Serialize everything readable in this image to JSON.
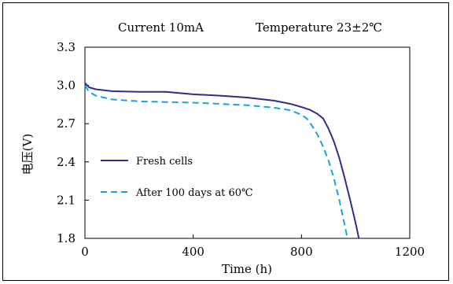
{
  "chart_data": {
    "type": "line",
    "title": "Current 10mA",
    "subtitle": "Temperature 23±2℃",
    "xlabel": "Time (h)",
    "ylabel": "电压(V)",
    "xlim": [
      0,
      1200
    ],
    "ylim": [
      1.8,
      3.3
    ],
    "x_ticks": [
      0,
      400,
      800,
      1200
    ],
    "y_ticks": [
      1.8,
      2.1,
      2.4,
      2.7,
      3.0,
      3.3
    ],
    "x_tick_labels": [
      "0",
      "400",
      "800",
      "1200"
    ],
    "y_tick_labels": [
      "1.8",
      "2.1",
      "2.4",
      "2.7",
      "3.0",
      "3.3"
    ],
    "grid": false,
    "legend_position": "left",
    "series": [
      {
        "name": "Fresh cells",
        "style": "solid",
        "color": "#2e2e8a",
        "x": [
          0,
          15,
          40,
          100,
          200,
          300,
          400,
          500,
          600,
          700,
          760,
          800,
          830,
          860,
          880,
          900,
          920,
          940,
          960,
          980,
          1000,
          1012
        ],
        "y": [
          3.02,
          2.985,
          2.97,
          2.955,
          2.95,
          2.95,
          2.93,
          2.92,
          2.905,
          2.88,
          2.855,
          2.83,
          2.81,
          2.775,
          2.74,
          2.66,
          2.56,
          2.43,
          2.27,
          2.1,
          1.92,
          1.8
        ]
      },
      {
        "name": "After 100 days at 60℃",
        "style": "dashed",
        "color": "#1aa3d9",
        "x": [
          0,
          15,
          40,
          100,
          200,
          300,
          400,
          500,
          600,
          700,
          760,
          800,
          820,
          840,
          860,
          880,
          900,
          920,
          940,
          960,
          970
        ],
        "y": [
          3.0,
          2.95,
          2.92,
          2.89,
          2.875,
          2.87,
          2.865,
          2.855,
          2.845,
          2.825,
          2.805,
          2.77,
          2.74,
          2.68,
          2.61,
          2.52,
          2.41,
          2.27,
          2.1,
          1.9,
          1.8
        ]
      }
    ]
  },
  "colors": {
    "axis": "#000000",
    "background": "#ffffff"
  }
}
